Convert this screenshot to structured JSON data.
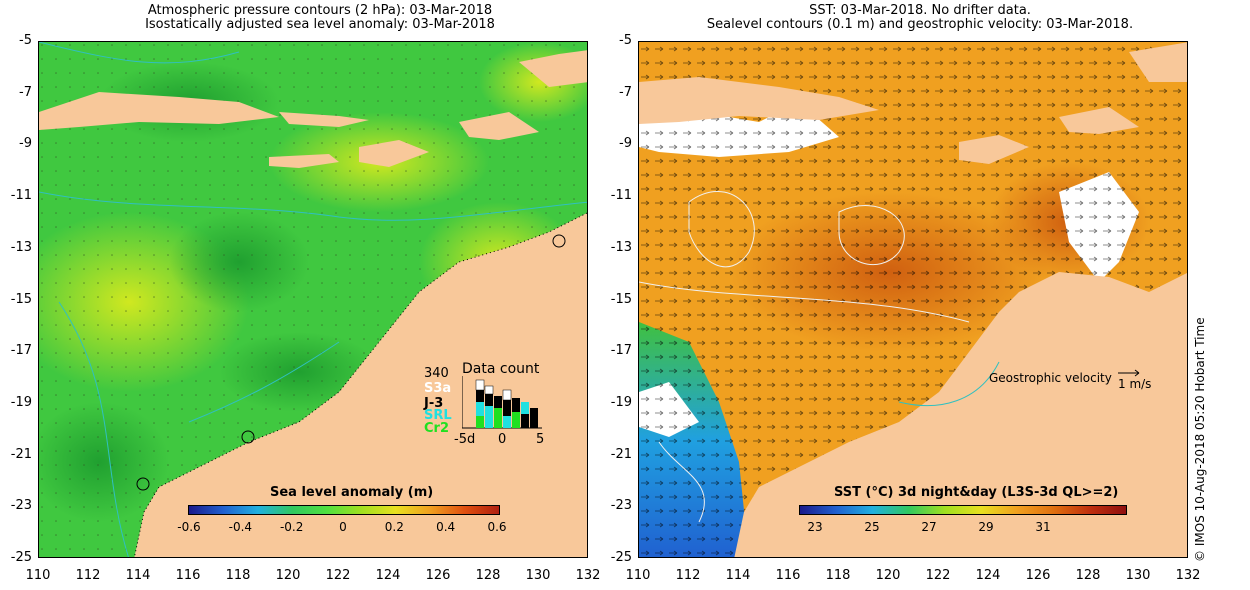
{
  "left_panel": {
    "title_line1": "Atmospheric pressure contours (2 hPa): 03-Mar-2018",
    "title_line2": "Isostatically adjusted sea level anomaly: 03-Mar-2018",
    "colorbar_label": "Sea level anomaly (m)",
    "colorbar_ticks": [
      "-0.6",
      "-0.4",
      "-0.2",
      "0",
      "0.2",
      "0.4",
      "0.6"
    ],
    "colorbar_colors": [
      "#1a1a8c",
      "#2060d0",
      "#20b0e0",
      "#30c860",
      "#50e040",
      "#a0e020",
      "#e8e020",
      "#f0a020",
      "#e05010",
      "#b02010"
    ],
    "data_count": {
      "title": "Data count",
      "max": "340",
      "satellites": [
        {
          "name": "S3a",
          "color": "#ffffff"
        },
        {
          "name": "J-3",
          "color": "#000000"
        },
        {
          "name": "SRL",
          "color": "#20e0e0"
        },
        {
          "name": "Cr2",
          "color": "#20e020"
        }
      ],
      "x_ticks": [
        "-5d",
        "0",
        "5"
      ]
    }
  },
  "right_panel": {
    "title_line1": "SST: 03-Mar-2018. No drifter data.",
    "title_line2": "Sealevel contours (0.1 m) and geostrophic velocity: 03-Mar-2018.",
    "velocity_legend": "Geostrophic velocity",
    "velocity_scale": "1 m/s",
    "colorbar_label": "SST (°C) 3d night&day (L3S-3d QL>=2)",
    "colorbar_ticks": [
      "23",
      "25",
      "27",
      "29",
      "31"
    ],
    "colorbar_colors": [
      "#1a1a8c",
      "#2060d0",
      "#20b0e0",
      "#30c860",
      "#a0e020",
      "#e8e020",
      "#f0a020",
      "#e07010",
      "#c03010",
      "#901010"
    ]
  },
  "axes": {
    "y_ticks": [
      "-5",
      "-7",
      "-9",
      "-11",
      "-13",
      "-15",
      "-17",
      "-19",
      "-21",
      "-23",
      "-25"
    ],
    "x_ticks": [
      "110",
      "112",
      "114",
      "116",
      "118",
      "120",
      "122",
      "124",
      "126",
      "128",
      "130",
      "132"
    ]
  },
  "colors": {
    "land": "#f8c89a",
    "ocean_slaa": "#40d040",
    "ocean_sst": "#f0a020",
    "cloud": "#ffffff"
  },
  "credit": "© IMOS 10-Aug-2018 05:20 Hobart Time"
}
